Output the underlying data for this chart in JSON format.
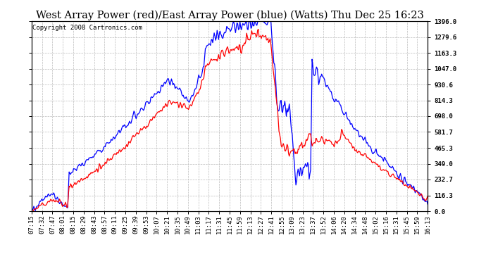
{
  "title": "West Array Power (red)/East Array Power (blue) (Watts) Thu Dec 25 16:23",
  "copyright": "Copyright 2008 Cartronics.com",
  "ylabel_right_values": [
    0.0,
    116.3,
    232.7,
    349.0,
    465.3,
    581.7,
    698.0,
    814.3,
    930.6,
    1047.0,
    1163.3,
    1279.6,
    1396.0
  ],
  "ymax": 1396.0,
  "ymin": 0.0,
  "background_color": "#ffffff",
  "plot_bg_color": "#ffffff",
  "grid_color": "#bbbbbb",
  "title_fontsize": 10.5,
  "tick_fontsize": 6.5,
  "copyright_fontsize": 6.5,
  "line_width": 0.9,
  "x_labels": [
    "07:15",
    "07:32",
    "07:47",
    "08:01",
    "08:15",
    "08:29",
    "08:43",
    "08:57",
    "09:11",
    "09:25",
    "09:39",
    "09:53",
    "10:07",
    "10:21",
    "10:35",
    "10:49",
    "11:03",
    "11:17",
    "11:31",
    "11:45",
    "11:59",
    "12:13",
    "12:27",
    "12:41",
    "12:55",
    "13:09",
    "13:23",
    "13:37",
    "13:52",
    "14:06",
    "14:20",
    "14:34",
    "14:48",
    "15:02",
    "15:16",
    "15:31",
    "15:45",
    "15:59",
    "16:13"
  ]
}
